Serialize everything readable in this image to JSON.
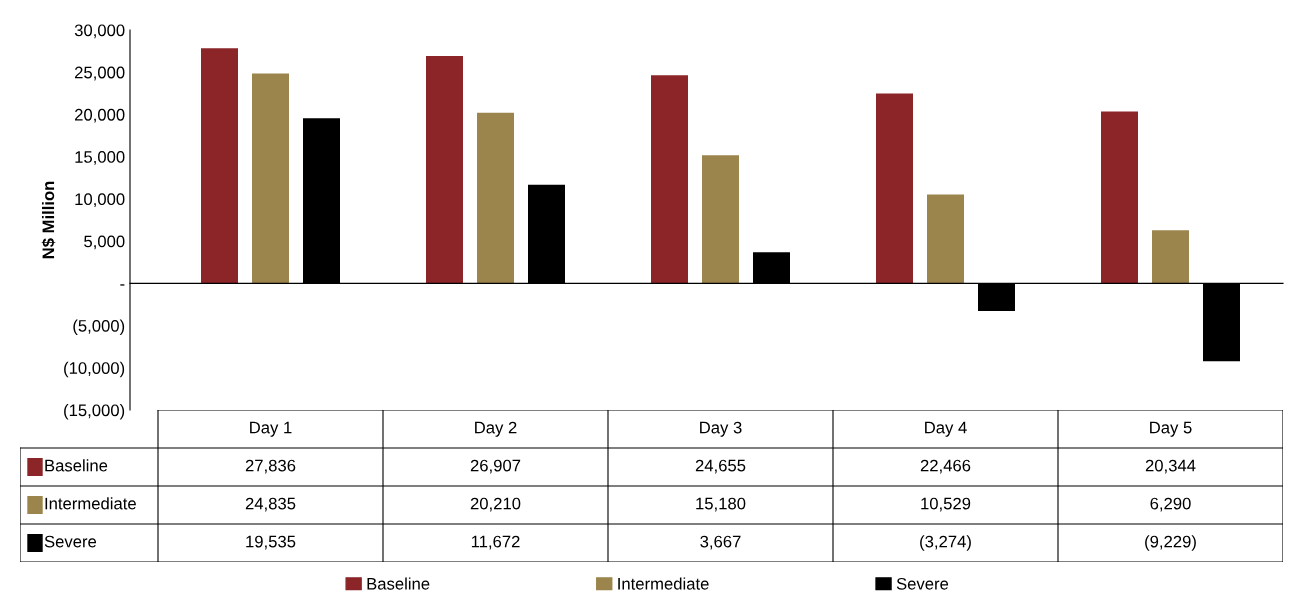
{
  "chart_data": {
    "type": "bar",
    "ylabel": "N$ Million",
    "categories": [
      "Day 1",
      "Day 2",
      "Day 3",
      "Day 4",
      "Day 5"
    ],
    "series": [
      {
        "name": "Baseline",
        "color": "#8b2528",
        "values": [
          27836,
          26907,
          24655,
          22466,
          20344
        ],
        "value_labels": [
          "27,836",
          "26,907",
          "24,655",
          "22,466",
          "20,344"
        ]
      },
      {
        "name": "Intermediate",
        "color": "#9b854c",
        "values": [
          24835,
          20210,
          15180,
          10529,
          6290
        ],
        "value_labels": [
          "24,835",
          "20,210",
          "15,180",
          "10,529",
          "6,290"
        ]
      },
      {
        "name": "Severe",
        "color": "#000000",
        "values": [
          19535,
          11672,
          3667,
          -3274,
          -9229
        ],
        "value_labels": [
          "19,535",
          "11,672",
          "3,667",
          "(3,274)",
          "(9,229)"
        ]
      }
    ],
    "ylim": [
      -15000,
      30000
    ],
    "yticks": [
      {
        "value": -15000,
        "label": "(15,000)"
      },
      {
        "value": -10000,
        "label": "(10,000)"
      },
      {
        "value": -5000,
        "label": "(5,000)"
      },
      {
        "value": 0,
        "label": "-"
      },
      {
        "value": 5000,
        "label": "5,000"
      },
      {
        "value": 10000,
        "label": "10,000"
      },
      {
        "value": 15000,
        "label": "15,000"
      },
      {
        "value": 20000,
        "label": "20,000"
      },
      {
        "value": 25000,
        "label": "25,000"
      },
      {
        "value": 30000,
        "label": "30,000"
      }
    ],
    "legend": "bottom"
  }
}
